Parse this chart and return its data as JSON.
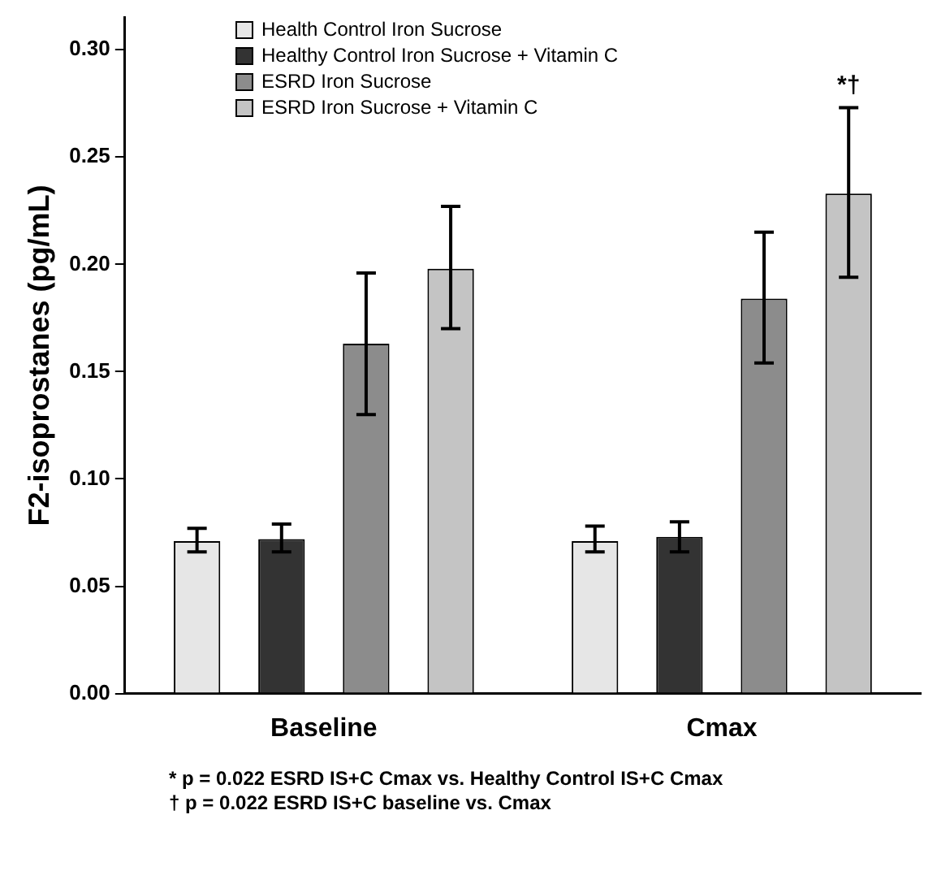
{
  "chart_data": {
    "type": "bar",
    "ylabel": "F2-isoprostanes (pg/mL)",
    "categories": [
      "Baseline",
      "Cmax"
    ],
    "series": [
      {
        "name": "Health Control Iron Sucrose",
        "color": "#e6e6e6",
        "values": [
          0.071,
          0.071
        ],
        "errors": [
          [
            0.066,
            0.077
          ],
          [
            0.066,
            0.078
          ]
        ]
      },
      {
        "name": "Healthy Control Iron Sucrose + Vitamin C",
        "color": "#333333",
        "values": [
          0.072,
          0.073
        ],
        "errors": [
          [
            0.066,
            0.079
          ],
          [
            0.066,
            0.08
          ]
        ]
      },
      {
        "name": "ESRD Iron Sucrose",
        "color": "#8c8c8c",
        "values": [
          0.163,
          0.184
        ],
        "errors": [
          [
            0.13,
            0.196
          ],
          [
            0.154,
            0.215
          ]
        ]
      },
      {
        "name": "ESRD Iron Sucrose + Vitamin C",
        "color": "#c4c4c4",
        "values": [
          0.198,
          0.233
        ],
        "errors": [
          [
            0.17,
            0.227
          ],
          [
            0.194,
            0.273
          ]
        ]
      }
    ],
    "ylim": [
      0,
      0.315
    ],
    "yticks": [
      {
        "value": 0,
        "label": "0.00"
      },
      {
        "value": 0.05,
        "label": "0.05"
      },
      {
        "value": 0.1,
        "label": "0.10"
      },
      {
        "value": 0.15,
        "label": "0.15"
      },
      {
        "value": 0.2,
        "label": "0.20"
      },
      {
        "value": 0.25,
        "label": "0.25"
      },
      {
        "value": 0.3,
        "label": "0.30"
      }
    ],
    "grid": false,
    "legend": "top left",
    "annotations": [
      "*†",
      "* p = 0.022 ESRD IS+C Cmax vs. Healthy Control IS+C Cmax",
      "† p = 0.022 ESRD IS+C baseline vs. Cmax"
    ]
  }
}
